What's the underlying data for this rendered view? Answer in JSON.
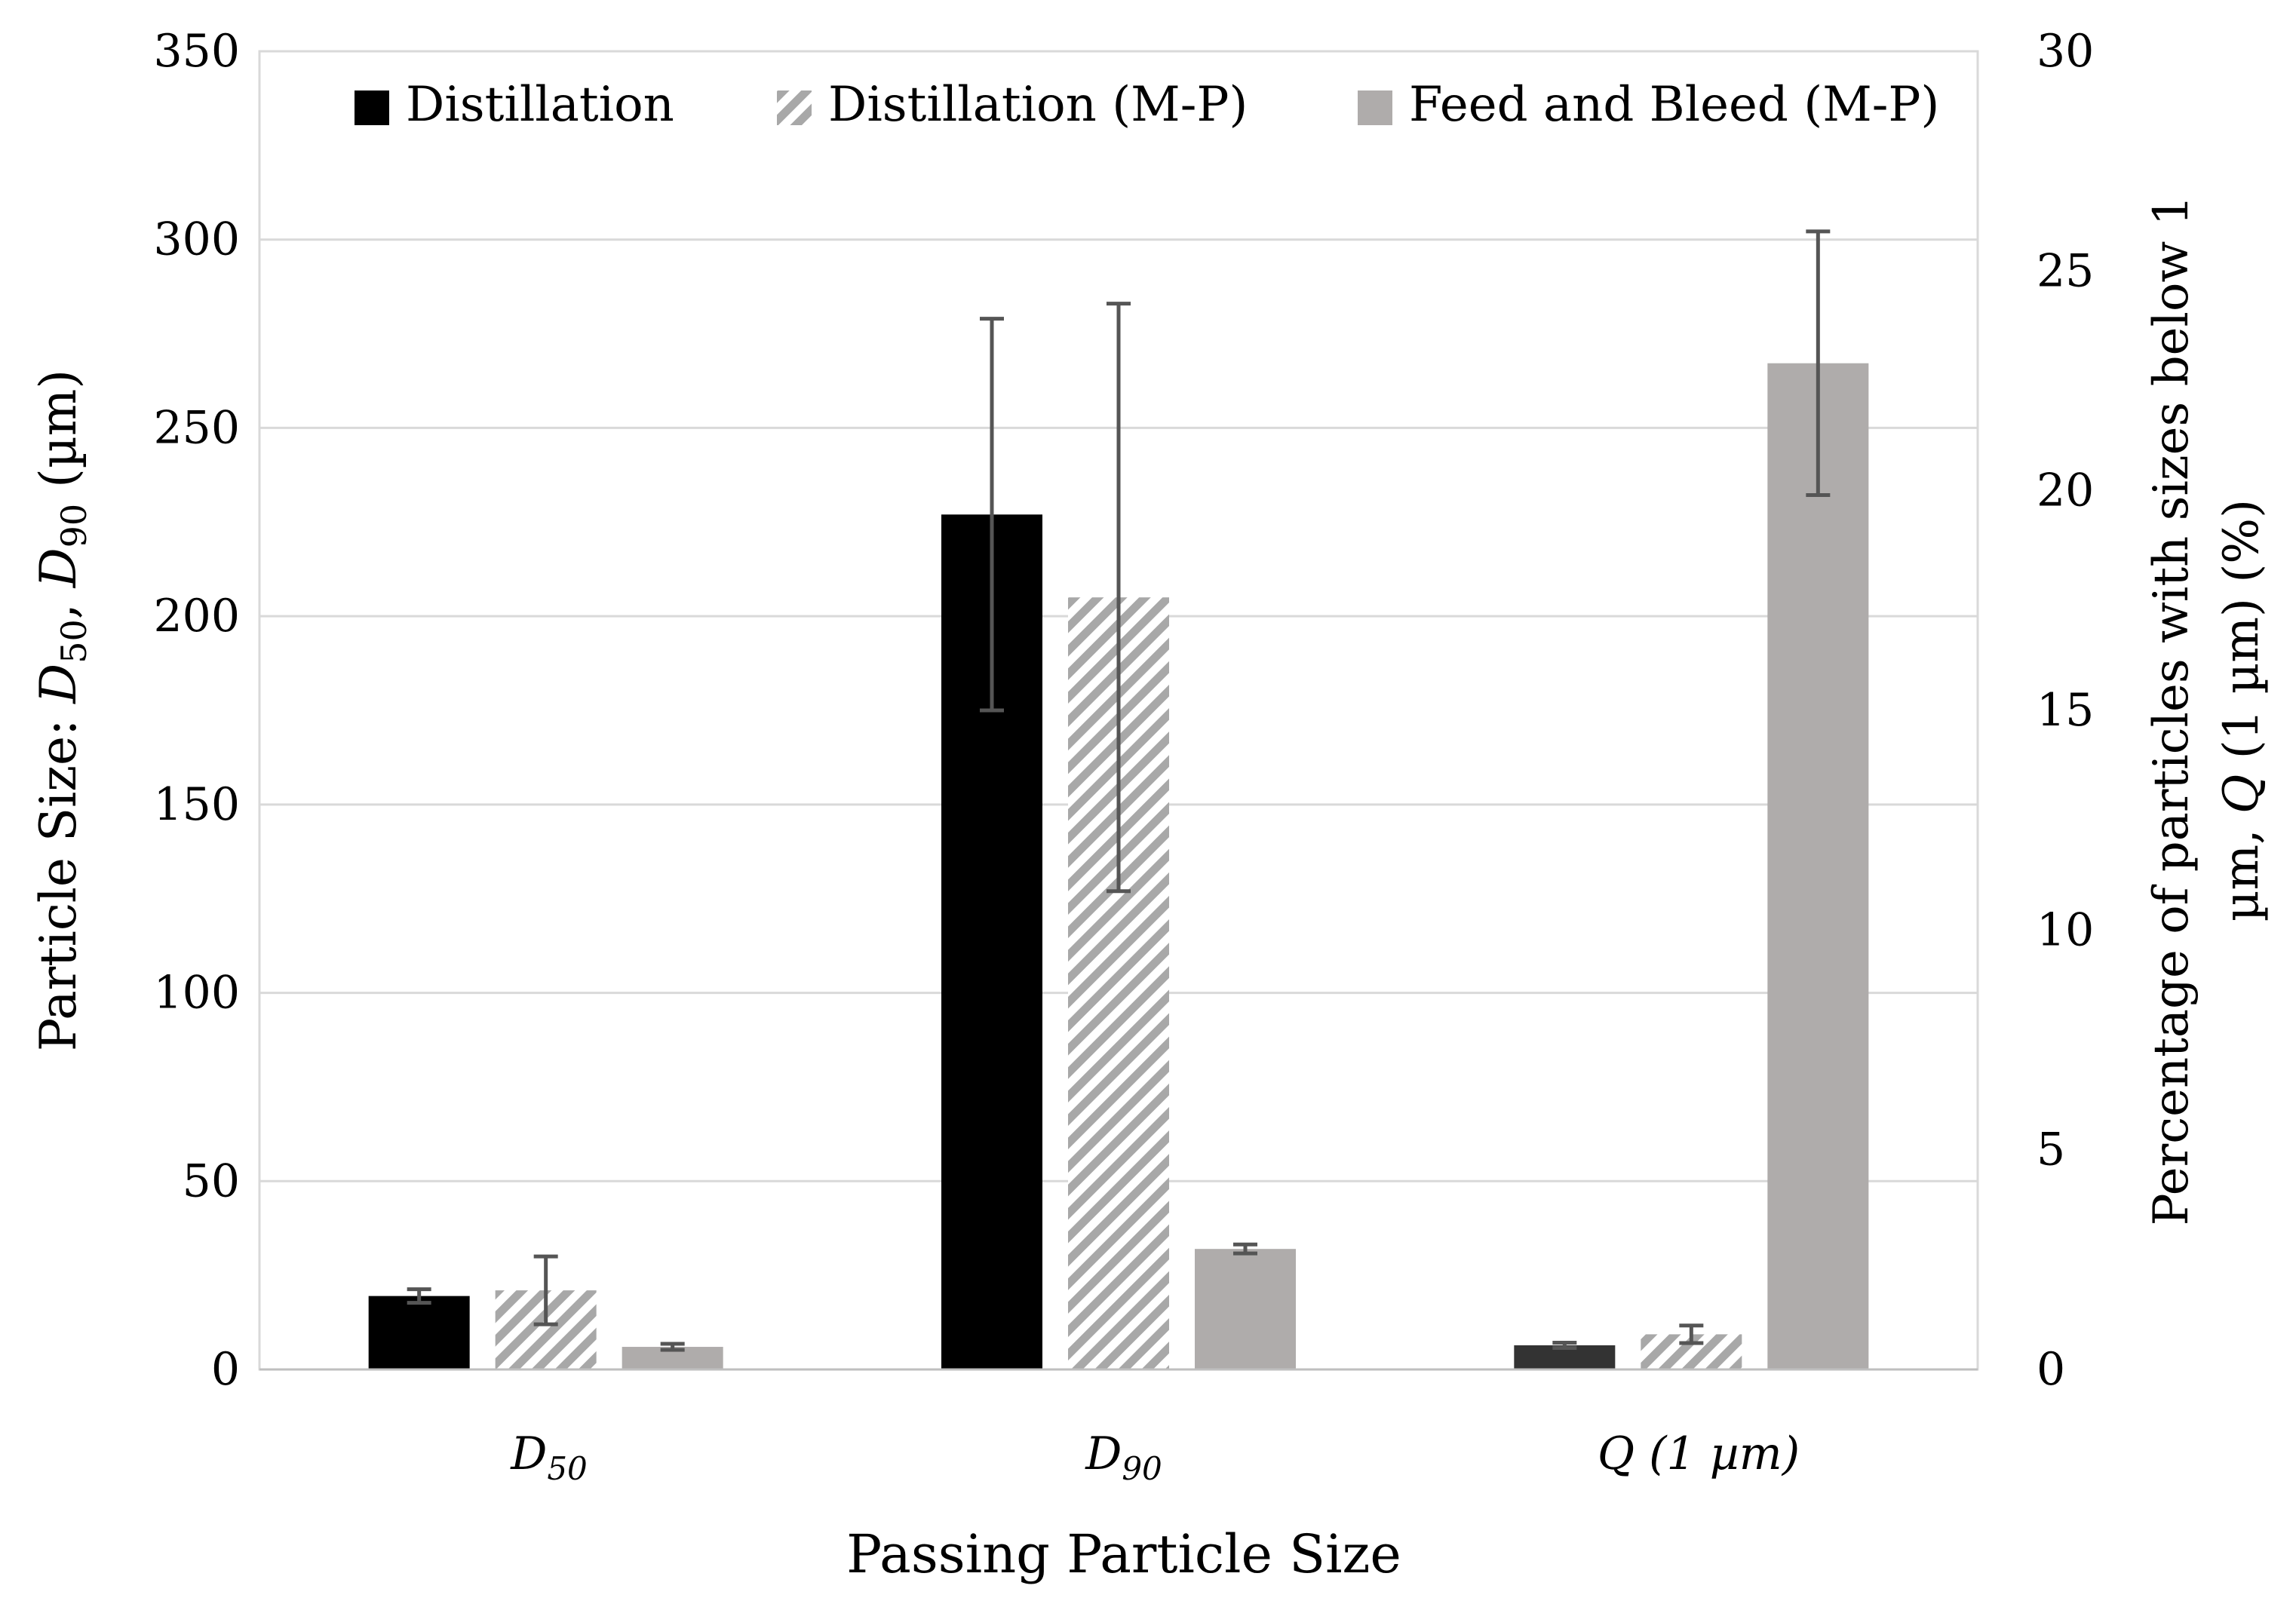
{
  "chart_data": {
    "type": "bar",
    "categories": [
      "D50",
      "D90",
      "Q (1 µm)"
    ],
    "category_labels": [
      {
        "main": "D",
        "sub": "50"
      },
      {
        "main": "D",
        "sub": "90"
      },
      {
        "main": "Q (1 µm)",
        "sub": ""
      }
    ],
    "xlabel": "Passing Particle Size",
    "ylabel": {
      "prefix": "Particle Size: ",
      "d1": "D",
      "s1": "50",
      "sep": ", ",
      "d2": "D",
      "s2": "90",
      "unit": " (µm)"
    },
    "y2label": {
      "line1": "Percentage of particles with sizes below 1",
      "line2_pre": "µm, ",
      "line2_var": "Q",
      "line2_post": " (1 µm) (%)"
    },
    "ylim": [
      0,
      350
    ],
    "y2lim": [
      0,
      30
    ],
    "yticks": [
      0,
      50,
      100,
      150,
      200,
      250,
      300,
      350
    ],
    "y2ticks": [
      0,
      5,
      10,
      15,
      20,
      25,
      30
    ],
    "grid": true,
    "legend": "top",
    "series": [
      {
        "name": "Distillation",
        "pattern": "solid-black",
        "color": "#000000",
        "values": [
          19.5,
          227,
          0.55
        ],
        "errors": [
          1.8,
          52,
          0.06
        ],
        "axis": [
          "left",
          "left",
          "right"
        ]
      },
      {
        "name": "Distillation (M-P)",
        "pattern": "hatched-grey",
        "color": "#a8a8a8",
        "values": [
          21,
          205,
          0.8
        ],
        "errors": [
          9,
          78,
          0.2
        ],
        "axis": [
          "left",
          "left",
          "right"
        ]
      },
      {
        "name": "Feed and Bleed (M-P)",
        "pattern": "solid-grey",
        "color": "#afacab",
        "values": [
          6,
          32,
          22.9
        ],
        "errors": [
          0.8,
          1.2,
          3.0
        ],
        "axis": [
          "left",
          "left",
          "right"
        ]
      }
    ]
  }
}
